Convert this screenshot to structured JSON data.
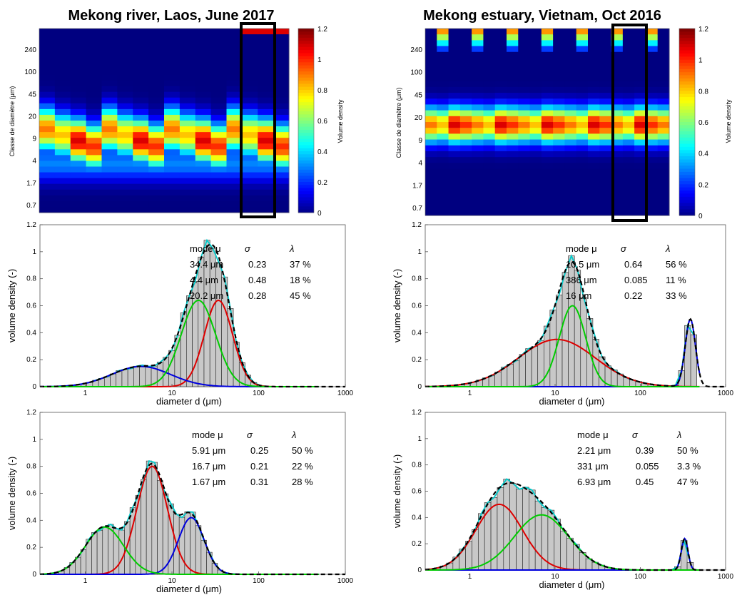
{
  "heatmaps": [
    {
      "title": "Mekong river, Laos, June 2017",
      "ylabel": "Classe de diamètre (μm)",
      "ytick_labels": [
        "240",
        "100",
        "45",
        "20",
        "9",
        "4",
        "1.7",
        "0.7"
      ],
      "colorbar_label": "Volume density",
      "colorbar_ticks": [
        "1.2",
        "1",
        "0.8",
        "0.6",
        "0.4",
        "0.2",
        "0"
      ],
      "n_columns": 16
    },
    {
      "title": "Mekong estuary, Vietnam, Oct 2016",
      "ylabel": "Classe de diamètre (μm)",
      "ytick_labels": [
        "240",
        "100",
        "45",
        "20",
        "9",
        "4",
        "1.7",
        "0.7"
      ],
      "colorbar_label": "Volume density",
      "colorbar_ticks": [
        "1.2",
        "1",
        "0.8",
        "0.6",
        "0.4",
        "0.2",
        "0"
      ],
      "n_columns": 21
    }
  ],
  "chart_data": [
    {
      "type": "bar",
      "title": "",
      "xlabel": "diameter d (μm)",
      "ylabel": "volume density (-)",
      "xscale": "log",
      "xlim": [
        0.3,
        1000
      ],
      "ylim": [
        0,
        1.2
      ],
      "xtick_labels": [
        "1",
        "10",
        "100",
        "1000"
      ],
      "ytick_labels": [
        "0",
        "0.2",
        "0.4",
        "0.6",
        "0.8",
        "1",
        "1.2"
      ],
      "legend_header": [
        "mode μ",
        "σ",
        "λ"
      ],
      "legend_rows": [
        {
          "mode": "34.4 μm",
          "sigma": "0.23",
          "lambda": "37 %"
        },
        {
          "mode": "4.4 μm",
          "sigma": "0.48",
          "lambda": "18 %"
        },
        {
          "mode": "20.2 μm",
          "sigma": "0.28",
          "lambda": "45 %"
        }
      ],
      "components": [
        {
          "color": "#dd0000",
          "mode": 34.4,
          "sigma": 0.23,
          "peak": 0.64
        },
        {
          "color": "#0000dd",
          "mode": 4.4,
          "sigma": 0.48,
          "peak": 0.15
        },
        {
          "color": "#00cc00",
          "mode": 20.2,
          "sigma": 0.28,
          "peak": 0.64
        }
      ],
      "fit_color": "#000000",
      "measured_color": "#00cccc",
      "bin_range": [
        0.35,
        130
      ],
      "nbins": 38
    },
    {
      "type": "bar",
      "title": "",
      "xlabel": "diameter d (μm)",
      "ylabel": "volume density (-)",
      "xscale": "log",
      "xlim": [
        0.3,
        1000
      ],
      "ylim": [
        0,
        1.2
      ],
      "xtick_labels": [
        "1",
        "10",
        "100",
        "1000"
      ],
      "ytick_labels": [
        "0",
        "0.2",
        "0.4",
        "0.6",
        "0.8",
        "1",
        "1.2"
      ],
      "legend_header": [
        "mode μ",
        "σ",
        "λ"
      ],
      "legend_rows": [
        {
          "mode": "10.5 μm",
          "sigma": "0.64",
          "lambda": "56 %"
        },
        {
          "mode": "386 μm",
          "sigma": "0.085",
          "lambda": "11 %"
        },
        {
          "mode": "16 μm",
          "sigma": "0.22",
          "lambda": "33 %"
        }
      ],
      "components": [
        {
          "color": "#dd0000",
          "mode": 10.5,
          "sigma": 0.64,
          "peak": 0.35
        },
        {
          "color": "#0000dd",
          "mode": 386,
          "sigma": 0.085,
          "peak": 0.5
        },
        {
          "color": "#00cc00",
          "mode": 16,
          "sigma": 0.22,
          "peak": 0.6
        }
      ],
      "fit_color": "#000000",
      "measured_color": "#00cccc",
      "bin_range": [
        0.32,
        460
      ],
      "nbins": 44
    },
    {
      "type": "bar",
      "title": "",
      "xlabel": "diameter d (μm)",
      "ylabel": "volume density (-)",
      "xscale": "log",
      "xlim": [
        0.3,
        1000
      ],
      "ylim": [
        0,
        1.2
      ],
      "xtick_labels": [
        "1",
        "10",
        "100",
        "1000"
      ],
      "ytick_labels": [
        "0",
        "0.2",
        "0.4",
        "0.6",
        "0.8",
        "1",
        "1.2"
      ],
      "legend_header": [
        "mode μ",
        "σ",
        "λ"
      ],
      "legend_rows": [
        {
          "mode": "5.91 μm",
          "sigma": "0.25",
          "lambda": "50 %"
        },
        {
          "mode": "16.7 μm",
          "sigma": "0.21",
          "lambda": "22 %"
        },
        {
          "mode": "1.67 μm",
          "sigma": "0.31",
          "lambda": "28 %"
        }
      ],
      "components": [
        {
          "color": "#dd0000",
          "mode": 5.91,
          "sigma": 0.25,
          "peak": 0.8
        },
        {
          "color": "#0000dd",
          "mode": 16.7,
          "sigma": 0.21,
          "peak": 0.42
        },
        {
          "color": "#00cc00",
          "mode": 1.67,
          "sigma": 0.31,
          "peak": 0.35
        }
      ],
      "fit_color": "#000000",
      "measured_color": "#00cccc",
      "bin_range": [
        0.32,
        60
      ],
      "nbins": 36
    },
    {
      "type": "bar",
      "title": "",
      "xlabel": "diameter d (μm)",
      "ylabel": "volume density (-)",
      "xscale": "log",
      "xlim": [
        0.3,
        1000
      ],
      "ylim": [
        0,
        1.2
      ],
      "xtick_labels": [
        "1",
        "10",
        "100",
        "1000"
      ],
      "ytick_labels": [
        "0",
        "0.2",
        "0.4",
        "0.6",
        "0.8",
        "1",
        "1.2"
      ],
      "legend_header": [
        "mode μ",
        "σ",
        "λ"
      ],
      "legend_rows": [
        {
          "mode": "2.21 μm",
          "sigma": "0.39",
          "lambda": "50 %"
        },
        {
          "mode": "331 μm",
          "sigma": "0.055",
          "lambda": "3.3 %"
        },
        {
          "mode": "6.93 μm",
          "sigma": "0.45",
          "lambda": "47 %"
        }
      ],
      "components": [
        {
          "color": "#dd0000",
          "mode": 2.21,
          "sigma": 0.39,
          "peak": 0.5
        },
        {
          "color": "#0000dd",
          "mode": 331,
          "sigma": 0.055,
          "peak": 0.24
        },
        {
          "color": "#00cc00",
          "mode": 6.93,
          "sigma": 0.45,
          "peak": 0.42
        }
      ],
      "fit_color": "#000000",
      "measured_color": "#00cccc",
      "bin_range": [
        0.32,
        420
      ],
      "nbins": 42
    }
  ]
}
